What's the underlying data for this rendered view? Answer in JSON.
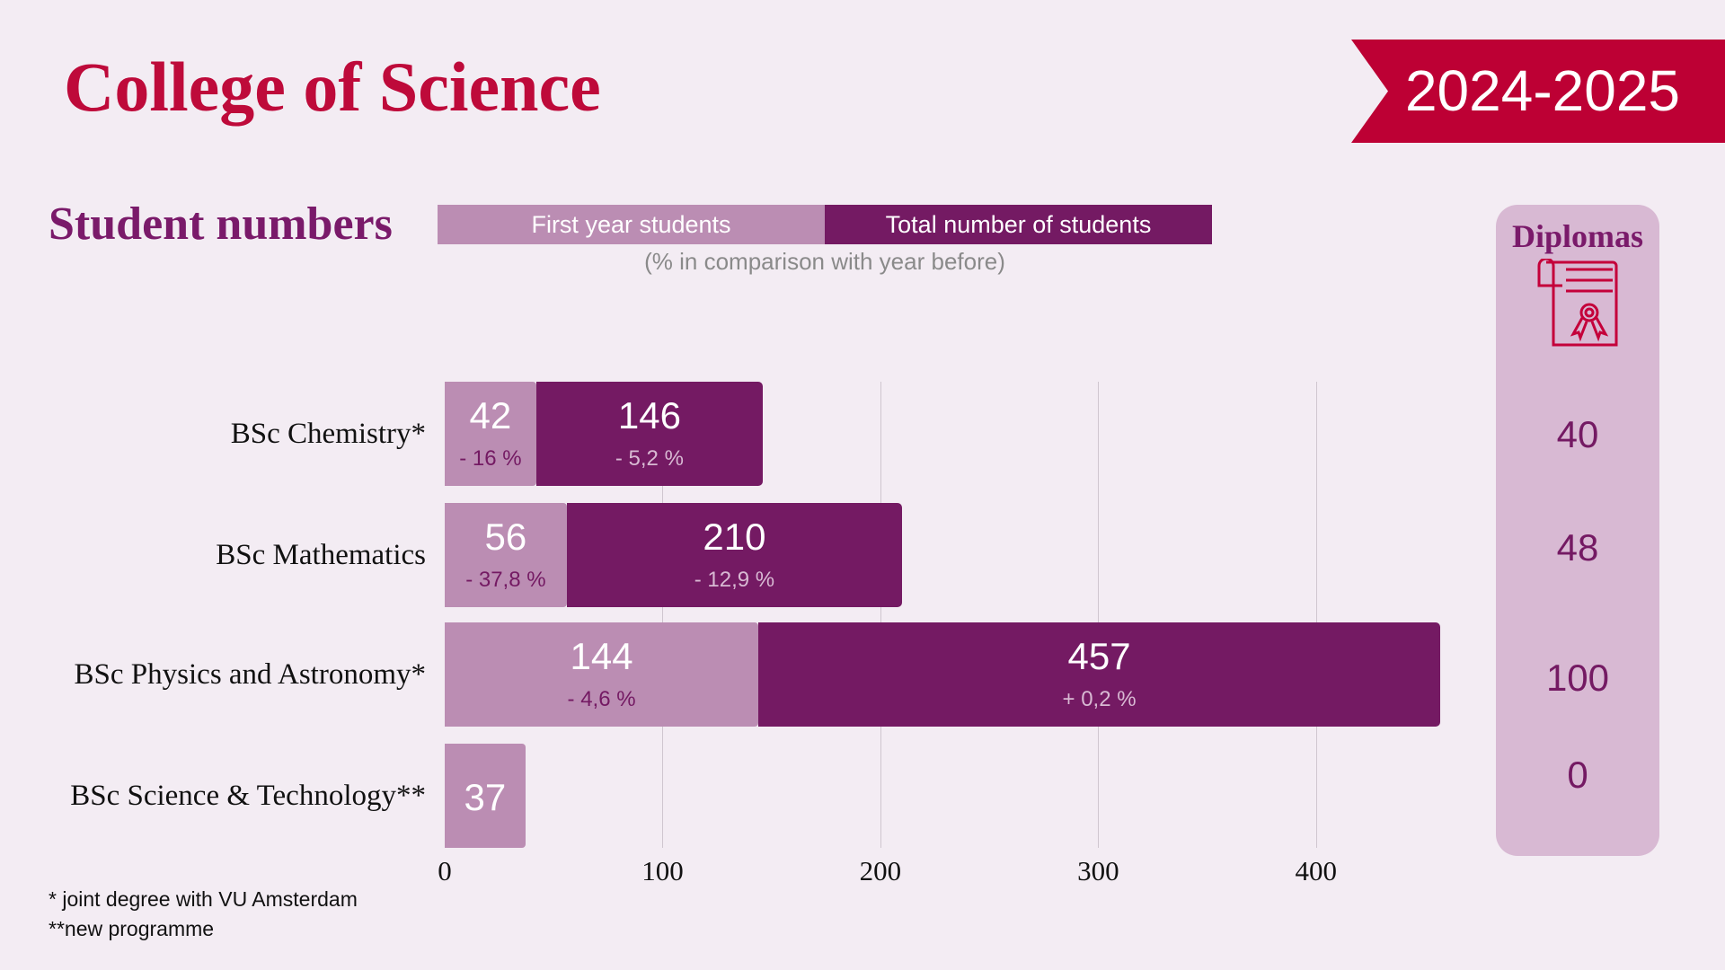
{
  "header": {
    "title": "College of Science",
    "year": "2024-2025"
  },
  "section_title": "Student numbers",
  "legend": {
    "first": "First year students",
    "total": "Total number of students",
    "note": "(% in comparison with year before)"
  },
  "colors": {
    "first": "#bb8db3",
    "total": "#741a63",
    "accent": "#bd0034"
  },
  "diplomas": {
    "title": "Diplomas",
    "icon": "diploma-certificate-icon",
    "values": [
      "40",
      "48",
      "100",
      "0"
    ]
  },
  "chart_data": {
    "type": "bar",
    "orientation": "horizontal",
    "categories": [
      "BSc Chemistry*",
      "BSc Mathematics",
      "BSc Physics and Astronomy*",
      "BSc Science & Technology**"
    ],
    "series": [
      {
        "name": "First year students",
        "values": [
          42,
          56,
          144,
          37
        ],
        "changes": [
          "- 16 %",
          "- 37,8 %",
          "- 4,6 %",
          null
        ]
      },
      {
        "name": "Total number of students",
        "values": [
          146,
          210,
          457,
          null
        ],
        "changes": [
          "- 5,2 %",
          "- 12,9 %",
          "+ 0,2 %",
          null
        ]
      }
    ],
    "xlim": [
      0,
      460
    ],
    "xticks": [
      "0",
      "100",
      "200",
      "300",
      "400"
    ],
    "grid": true
  },
  "footnotes": [
    "* joint degree with VU Amsterdam",
    "**new programme"
  ]
}
